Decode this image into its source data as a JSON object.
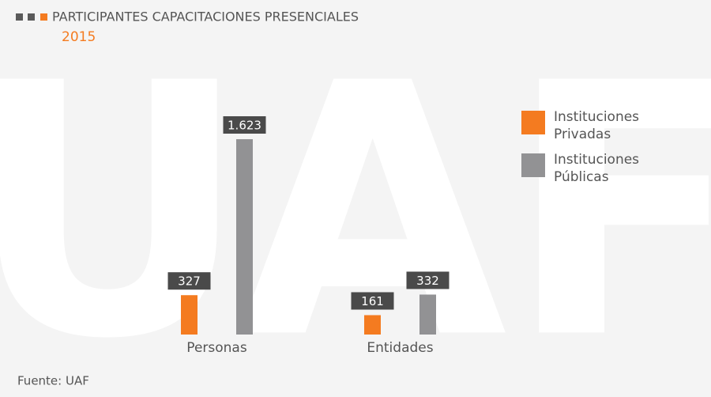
{
  "chart_data": {
    "type": "bar",
    "title": "PARTICIPANTES CAPACITACIONES PRESENCIALES",
    "subtitle": "2015",
    "watermark": "UAF",
    "categories": [
      "Personas",
      "Entidades"
    ],
    "series": [
      {
        "name": "Instituciones Privadas",
        "color": "#f47b20",
        "values": [
          327,
          161
        ],
        "value_labels": [
          "327",
          "161"
        ]
      },
      {
        "name": "Instituciones Públicas",
        "color": "#929294",
        "values": [
          1623,
          332
        ],
        "value_labels": [
          "1.623",
          "332"
        ]
      }
    ],
    "legend": "right",
    "source": "Fuente: UAF"
  }
}
